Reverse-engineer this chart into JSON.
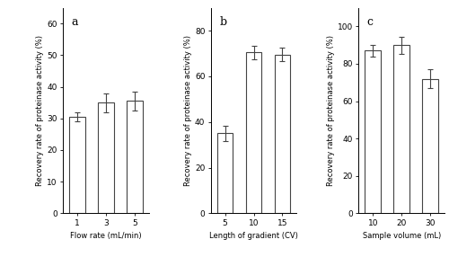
{
  "panel_a": {
    "x_labels": [
      "1",
      "3",
      "5"
    ],
    "x_positions": [
      1,
      2,
      3
    ],
    "values": [
      30.5,
      35.0,
      35.5
    ],
    "errors": [
      1.5,
      3.0,
      3.0
    ],
    "xlabel": "Flow rate (mL/min)",
    "ylabel": "Recovery rate of proteinase activity (%)",
    "ylim": [
      0,
      65
    ],
    "yticks": [
      0,
      10,
      20,
      30,
      40,
      50,
      60
    ],
    "label": "a"
  },
  "panel_b": {
    "x_labels": [
      "5",
      "10",
      "15"
    ],
    "x_positions": [
      1,
      2,
      3
    ],
    "values": [
      35.0,
      70.5,
      69.5
    ],
    "errors": [
      3.5,
      3.0,
      3.0
    ],
    "xlabel": "Length of gradient (CV)",
    "ylabel": "Recovery rate of proteinase activity (%)",
    "ylim": [
      0,
      90
    ],
    "yticks": [
      0,
      20,
      40,
      60,
      80
    ],
    "label": "b"
  },
  "panel_c": {
    "x_labels": [
      "10",
      "20",
      "30"
    ],
    "x_positions": [
      1,
      2,
      3
    ],
    "values": [
      87.0,
      90.0,
      72.0
    ],
    "errors": [
      3.0,
      4.5,
      5.0
    ],
    "xlabel": "Sample volume (mL)",
    "ylabel": "Recovery rate of proteinase activity (%)",
    "ylim": [
      0,
      110
    ],
    "yticks": [
      0,
      20,
      40,
      60,
      80,
      100
    ],
    "label": "c"
  },
  "bar_color": "#ffffff",
  "bar_edgecolor": "#444444",
  "bar_linewidth": 0.8,
  "bar_width": 0.55,
  "error_color": "#444444",
  "error_capsize": 2.5,
  "error_linewidth": 0.8,
  "tick_fontsize": 6.5,
  "label_fontsize": 6.0,
  "panel_label_fontsize": 9
}
